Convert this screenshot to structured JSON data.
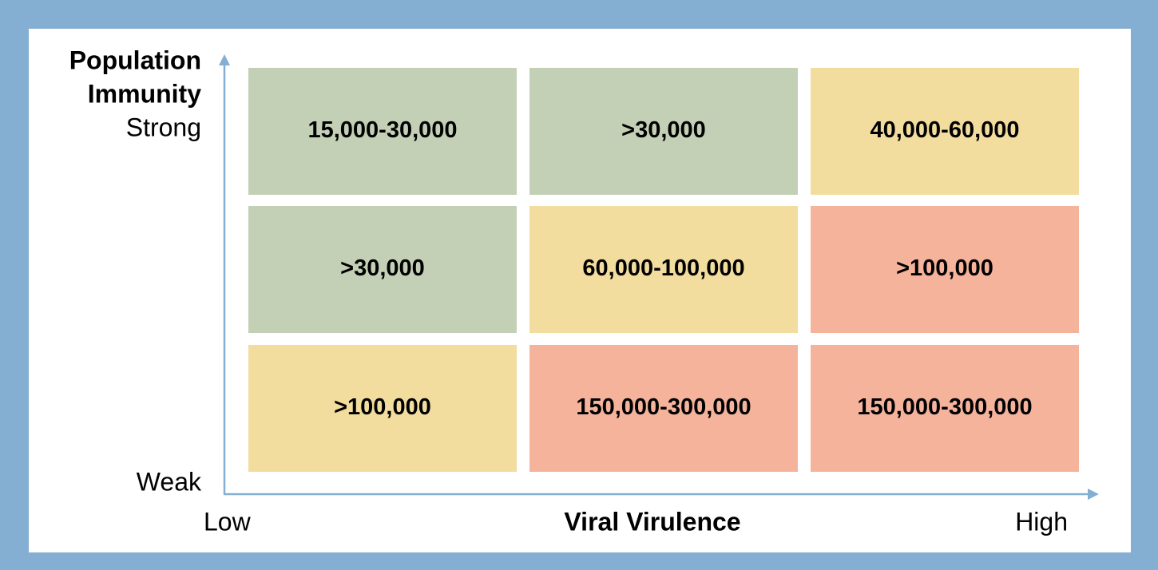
{
  "y_axis": {
    "title_lines": [
      "Population",
      "Immunity"
    ],
    "high": "Strong",
    "low": "Weak"
  },
  "x_axis": {
    "title": "Viral Virulence",
    "low": "Low",
    "high": "High"
  },
  "frame_color": "#84afd2",
  "axis_color": "#84afd2",
  "cells": [
    [
      {
        "label": "15,000-30,000",
        "color": "#c3d0b6"
      },
      {
        "label": ">30,000",
        "color": "#c3d0b6"
      },
      {
        "label": "40,000-60,000",
        "color": "#f2dd9f"
      }
    ],
    [
      {
        "label": ">30,000",
        "color": "#c3d0b6"
      },
      {
        "label": "60,000-100,000",
        "color": "#f2dd9f"
      },
      {
        "label": ">100,000",
        "color": "#f5b39c"
      }
    ],
    [
      {
        "label": ">100,000",
        "color": "#f2dd9f"
      },
      {
        "label": "150,000-300,000",
        "color": "#f5b39c"
      },
      {
        "label": "150,000-300,000",
        "color": "#f5b39c"
      }
    ]
  ]
}
